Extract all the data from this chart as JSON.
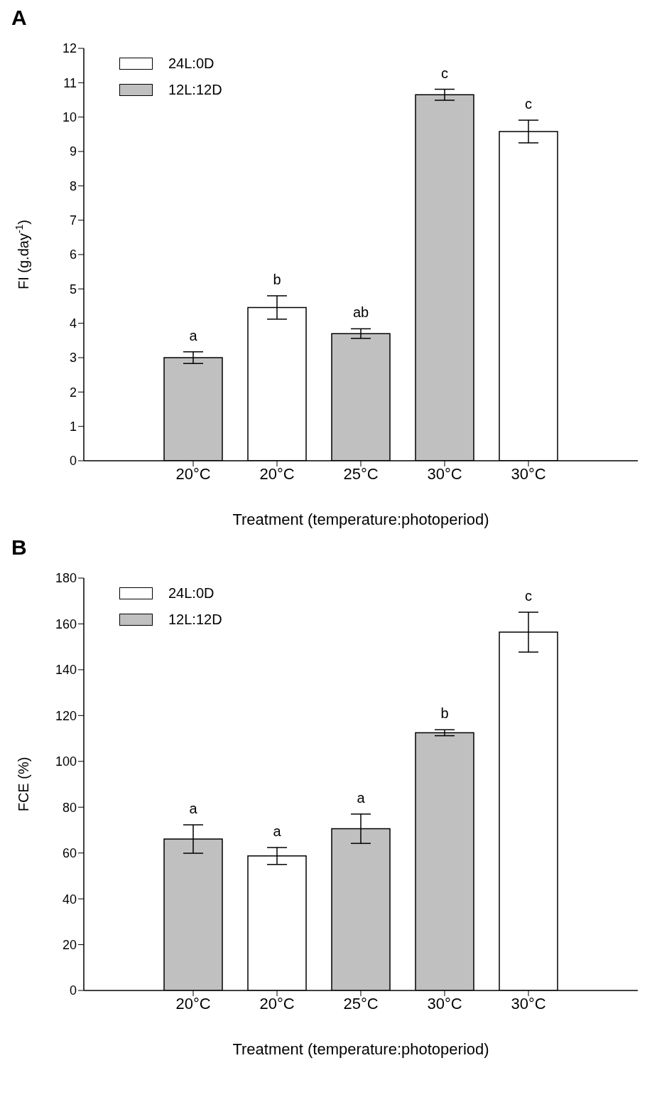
{
  "chart_data": [
    {
      "type": "bar",
      "title": "A",
      "xlabel": "Treatment (temperature:photoperiod)",
      "ylabel": "FI (g.day$^{-1}$)",
      "categories": [
        "20°C",
        "20°C",
        "25°C",
        "30°C",
        "30°C"
      ],
      "ylim": [
        0,
        12
      ],
      "yticks": [
        0,
        1,
        2,
        3,
        4,
        5,
        6,
        7,
        8,
        9,
        10,
        11,
        12
      ],
      "grid": false,
      "legend": "top left",
      "series": [
        {
          "name": "24L:0D",
          "color": "#ffffff",
          "values": [
            null,
            4.46,
            null,
            null,
            9.58
          ],
          "errors": [
            null,
            0.34,
            null,
            null,
            0.33
          ],
          "value_labels": [
            null,
            "b",
            null,
            null,
            "c"
          ]
        },
        {
          "name": "12L:12D",
          "color": "#c0c0c0",
          "values": [
            3.0,
            null,
            3.7,
            10.65,
            null
          ],
          "errors": [
            0.17,
            null,
            0.14,
            0.16,
            null
          ],
          "value_labels": [
            "a",
            null,
            "ab",
            "c",
            null
          ]
        }
      ]
    },
    {
      "type": "bar",
      "title": "B",
      "xlabel": "Treatment (temperature:photoperiod)",
      "ylabel": "FCE (%)",
      "categories": [
        "20°C",
        "20°C",
        "25°C",
        "30°C",
        "30°C"
      ],
      "ylim": [
        0,
        180
      ],
      "yticks": [
        0,
        20,
        40,
        60,
        80,
        100,
        120,
        140,
        160,
        180
      ],
      "grid": false,
      "legend": "top left",
      "series": [
        {
          "name": "24L:0D",
          "color": "#ffffff",
          "values": [
            null,
            58.7,
            null,
            null,
            156.4
          ],
          "errors": [
            null,
            3.7,
            null,
            null,
            8.7
          ],
          "value_labels": [
            null,
            "a",
            null,
            null,
            "c"
          ]
        },
        {
          "name": "12L:12D",
          "color": "#c0c0c0",
          "values": [
            66.1,
            null,
            70.6,
            112.5,
            null
          ],
          "errors": [
            6.2,
            null,
            6.4,
            1.3,
            null
          ],
          "value_labels": [
            "a",
            null,
            "a",
            "b",
            null
          ]
        }
      ]
    }
  ]
}
